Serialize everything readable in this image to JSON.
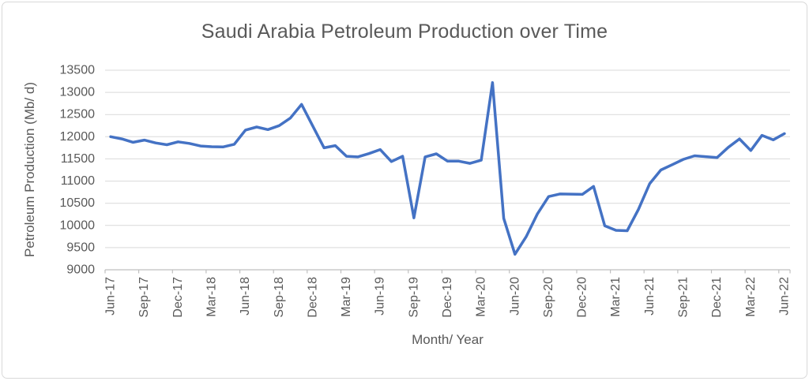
{
  "window": {
    "background": "#FFFFFF",
    "frame_border_color": "#D9D9D9"
  },
  "chart_data": {
    "type": "line",
    "title": "Saudi Arabia Petroleum Production over Time",
    "xlabel": "Month/ Year",
    "ylabel": "Petroleum Production (Mb/ d)",
    "text_color": "#595959",
    "gridline_color": "#D9D9D9",
    "axis_line_color": "#BFBFBF",
    "grid": true,
    "legend_position": "none",
    "ylim": [
      9000,
      13500
    ],
    "y_ticks": [
      9000,
      9500,
      10000,
      10500,
      11000,
      11500,
      12000,
      12500,
      13000,
      13500
    ],
    "x_tick_labels": [
      "Jun-17",
      "Sep-17",
      "Dec-17",
      "Mar-18",
      "Jun-18",
      "Sep-18",
      "Dec-18",
      "Mar-19",
      "Jun-19",
      "Sep-19",
      "Dec-19",
      "Mar-20",
      "Jun-20",
      "Sep-20",
      "Dec-20",
      "Mar-21",
      "Jun-21",
      "Sep-21",
      "Dec-21",
      "Mar-22",
      "Jun-22"
    ],
    "x": [
      "Jun-17",
      "Jul-17",
      "Aug-17",
      "Sep-17",
      "Oct-17",
      "Nov-17",
      "Dec-17",
      "Jan-18",
      "Feb-18",
      "Mar-18",
      "Apr-18",
      "May-18",
      "Jun-18",
      "Jul-18",
      "Aug-18",
      "Sep-18",
      "Oct-18",
      "Nov-18",
      "Dec-18",
      "Jan-19",
      "Feb-19",
      "Mar-19",
      "Apr-19",
      "May-19",
      "Jun-19",
      "Jul-19",
      "Aug-19",
      "Sep-19",
      "Oct-19",
      "Nov-19",
      "Dec-19",
      "Jan-20",
      "Feb-20",
      "Mar-20",
      "Apr-20",
      "May-20",
      "Jun-20",
      "Jul-20",
      "Aug-20",
      "Sep-20",
      "Oct-20",
      "Nov-20",
      "Dec-20",
      "Jan-21",
      "Feb-21",
      "Mar-21",
      "Apr-21",
      "May-21",
      "Jun-21",
      "Jul-21",
      "Aug-21",
      "Sep-21",
      "Oct-21",
      "Nov-21",
      "Dec-21",
      "Jan-22",
      "Feb-22",
      "Mar-22",
      "Apr-22",
      "May-22",
      "Jun-22"
    ],
    "series": [
      {
        "name": "Petroleum Production (Mb/d)",
        "color": "#4472C4",
        "values": [
          12000,
          11950,
          11875,
          11925,
          11860,
          11820,
          11885,
          11850,
          11790,
          11775,
          11770,
          11830,
          12150,
          12220,
          12160,
          12250,
          12420,
          12730,
          12240,
          11750,
          11800,
          11560,
          11545,
          11620,
          11710,
          11440,
          11560,
          10170,
          11545,
          11615,
          11450,
          11450,
          11400,
          11470,
          13220,
          10160,
          9350,
          9745,
          10260,
          10650,
          10710,
          10705,
          10700,
          10880,
          9990,
          9890,
          9880,
          10360,
          10940,
          11250,
          11370,
          11490,
          11570,
          11550,
          11530,
          11760,
          11950,
          11690,
          12030,
          11930,
          12070
        ]
      }
    ]
  }
}
